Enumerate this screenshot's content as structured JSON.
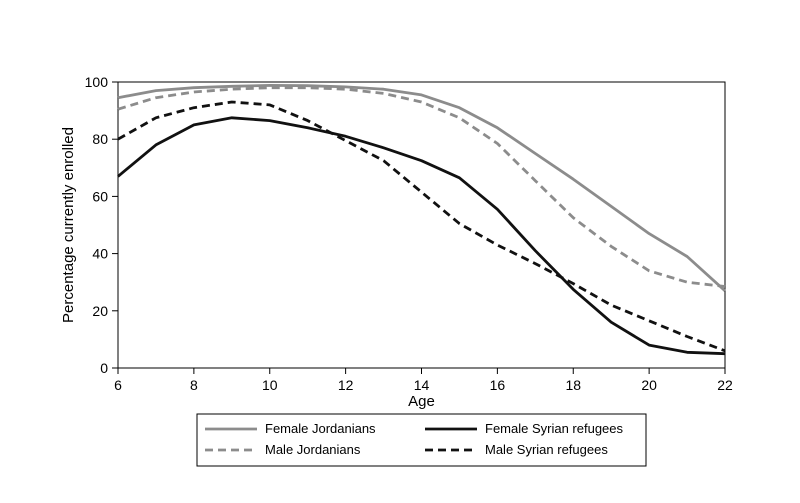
{
  "chart_data": {
    "type": "line",
    "xlabel": "Age",
    "ylabel": "Percentage currently enrolled",
    "xlim": [
      6,
      22
    ],
    "ylim": [
      0,
      100
    ],
    "x_ticks": [
      6,
      8,
      10,
      12,
      14,
      16,
      18,
      20,
      22
    ],
    "y_ticks": [
      0,
      20,
      40,
      60,
      80,
      100
    ],
    "grid": false,
    "legend_placement": "bottom",
    "x": [
      6,
      7,
      8,
      9,
      10,
      11,
      12,
      13,
      14,
      15,
      16,
      17,
      18,
      19,
      20,
      21,
      22
    ],
    "series": [
      {
        "name": "Female Jordanians",
        "color": "#8c8c8c",
        "dash": "solid",
        "values": [
          94.5,
          97,
          98,
          98.5,
          98.8,
          98.7,
          98.3,
          97.5,
          95.5,
          91,
          84,
          75,
          66,
          56.5,
          47,
          39,
          27
        ]
      },
      {
        "name": "Female Syrian refugees",
        "color": "#111111",
        "dash": "solid",
        "values": [
          67,
          78,
          85,
          87.5,
          86.5,
          84,
          81,
          77,
          72.5,
          66.5,
          55.5,
          41,
          27.5,
          16,
          8,
          5.5,
          5
        ]
      },
      {
        "name": "Male Jordanians",
        "color": "#8c8c8c",
        "dash": "dashed",
        "values": [
          90.5,
          94.5,
          96.5,
          97.5,
          98,
          98,
          97.5,
          96,
          93,
          87.5,
          78.5,
          65.5,
          52.5,
          42.5,
          34,
          30,
          28.5
        ]
      },
      {
        "name": "Male Syrian refugees",
        "color": "#111111",
        "dash": "dashed",
        "values": [
          80,
          87.5,
          91,
          93,
          92,
          86.5,
          79.5,
          72.5,
          61.5,
          50.5,
          43,
          36.5,
          29.5,
          22,
          16.5,
          11,
          6
        ]
      }
    ]
  }
}
